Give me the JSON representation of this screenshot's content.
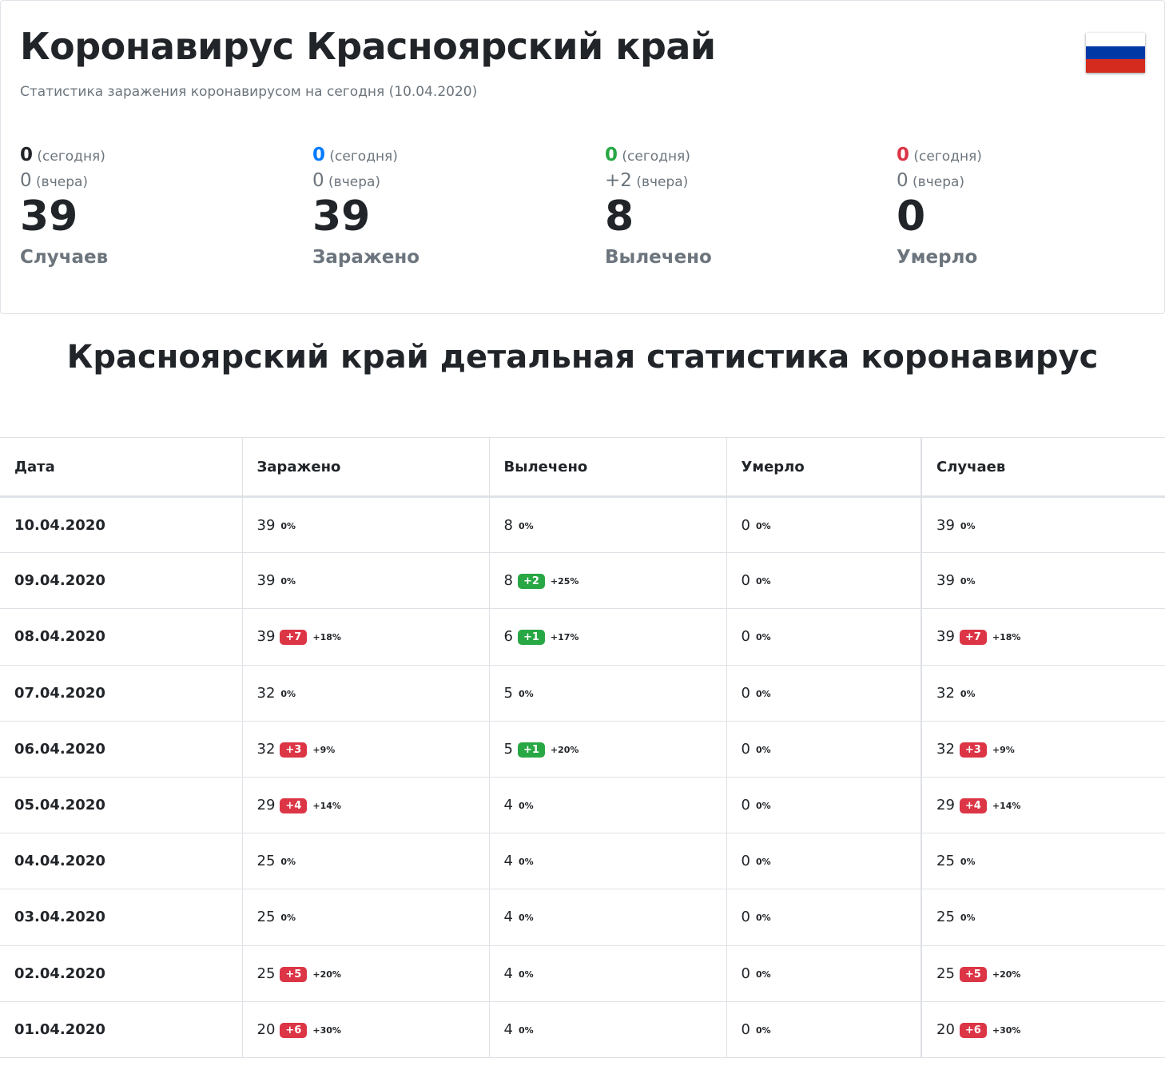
{
  "header": {
    "title": "Коронавирус Красноярский край",
    "subtitle": "Статистика заражения коронавирусом на сегодня (10.04.2020)",
    "flag_colors": [
      "#ffffff",
      "#0039a6",
      "#d52b1e"
    ]
  },
  "stats": [
    {
      "today": "0",
      "today_label": "(сегодня)",
      "yesterday": "0",
      "yesterday_label": "(вчера)",
      "total": "39",
      "label": "Случаев",
      "color": "#212529"
    },
    {
      "today": "0",
      "today_label": "(сегодня)",
      "yesterday": "0",
      "yesterday_label": "(вчера)",
      "total": "39",
      "label": "Заражено",
      "color": "#007bff"
    },
    {
      "today": "0",
      "today_label": "(сегодня)",
      "yesterday": "+2",
      "yesterday_label": "(вчера)",
      "total": "8",
      "label": "Вылечено",
      "color": "#28a745"
    },
    {
      "today": "0",
      "today_label": "(сегодня)",
      "yesterday": "0",
      "yesterday_label": "(вчера)",
      "total": "0",
      "label": "Умерло",
      "color": "#dc3545"
    }
  ],
  "section_title": "Красноярский край детальная статистика коронавирус",
  "table": {
    "headers": [
      "Дата",
      "Заражено",
      "Вылечено",
      "Умерло",
      "Случаев"
    ],
    "rows": [
      {
        "date": "10.04.2020",
        "cells": [
          {
            "v": "39",
            "d": "",
            "p": "0%"
          },
          {
            "v": "8",
            "d": "",
            "p": "0%"
          },
          {
            "v": "0",
            "d": "",
            "p": "0%"
          },
          {
            "v": "39",
            "d": "",
            "p": "0%"
          }
        ]
      },
      {
        "date": "09.04.2020",
        "cells": [
          {
            "v": "39",
            "d": "",
            "p": "0%"
          },
          {
            "v": "8",
            "d": "+2",
            "p": "+25%"
          },
          {
            "v": "0",
            "d": "",
            "p": "0%"
          },
          {
            "v": "39",
            "d": "",
            "p": "0%"
          }
        ]
      },
      {
        "date": "08.04.2020",
        "cells": [
          {
            "v": "39",
            "d": "+7",
            "p": "+18%"
          },
          {
            "v": "6",
            "d": "+1",
            "p": "+17%"
          },
          {
            "v": "0",
            "d": "",
            "p": "0%"
          },
          {
            "v": "39",
            "d": "+7",
            "p": "+18%"
          }
        ]
      },
      {
        "date": "07.04.2020",
        "cells": [
          {
            "v": "32",
            "d": "",
            "p": "0%"
          },
          {
            "v": "5",
            "d": "",
            "p": "0%"
          },
          {
            "v": "0",
            "d": "",
            "p": "0%"
          },
          {
            "v": "32",
            "d": "",
            "p": "0%"
          }
        ]
      },
      {
        "date": "06.04.2020",
        "cells": [
          {
            "v": "32",
            "d": "+3",
            "p": "+9%"
          },
          {
            "v": "5",
            "d": "+1",
            "p": "+20%"
          },
          {
            "v": "0",
            "d": "",
            "p": "0%"
          },
          {
            "v": "32",
            "d": "+3",
            "p": "+9%"
          }
        ]
      },
      {
        "date": "05.04.2020",
        "cells": [
          {
            "v": "29",
            "d": "+4",
            "p": "+14%"
          },
          {
            "v": "4",
            "d": "",
            "p": "0%"
          },
          {
            "v": "0",
            "d": "",
            "p": "0%"
          },
          {
            "v": "29",
            "d": "+4",
            "p": "+14%"
          }
        ]
      },
      {
        "date": "04.04.2020",
        "cells": [
          {
            "v": "25",
            "d": "",
            "p": "0%"
          },
          {
            "v": "4",
            "d": "",
            "p": "0%"
          },
          {
            "v": "0",
            "d": "",
            "p": "0%"
          },
          {
            "v": "25",
            "d": "",
            "p": "0%"
          }
        ]
      },
      {
        "date": "03.04.2020",
        "cells": [
          {
            "v": "25",
            "d": "",
            "p": "0%"
          },
          {
            "v": "4",
            "d": "",
            "p": "0%"
          },
          {
            "v": "0",
            "d": "",
            "p": "0%"
          },
          {
            "v": "25",
            "d": "",
            "p": "0%"
          }
        ]
      },
      {
        "date": "02.04.2020",
        "cells": [
          {
            "v": "25",
            "d": "+5",
            "p": "+20%"
          },
          {
            "v": "4",
            "d": "",
            "p": "0%"
          },
          {
            "v": "0",
            "d": "",
            "p": "0%"
          },
          {
            "v": "25",
            "d": "+5",
            "p": "+20%"
          }
        ]
      },
      {
        "date": "01.04.2020",
        "cells": [
          {
            "v": "20",
            "d": "+6",
            "p": "+30%"
          },
          {
            "v": "4",
            "d": "",
            "p": "0%"
          },
          {
            "v": "0",
            "d": "",
            "p": "0%"
          },
          {
            "v": "20",
            "d": "+6",
            "p": "+30%"
          }
        ]
      }
    ],
    "badge_colors": {
      "Заражено": "red",
      "Вылечено": "green",
      "Умерло": "red",
      "Случаев": "red"
    }
  }
}
